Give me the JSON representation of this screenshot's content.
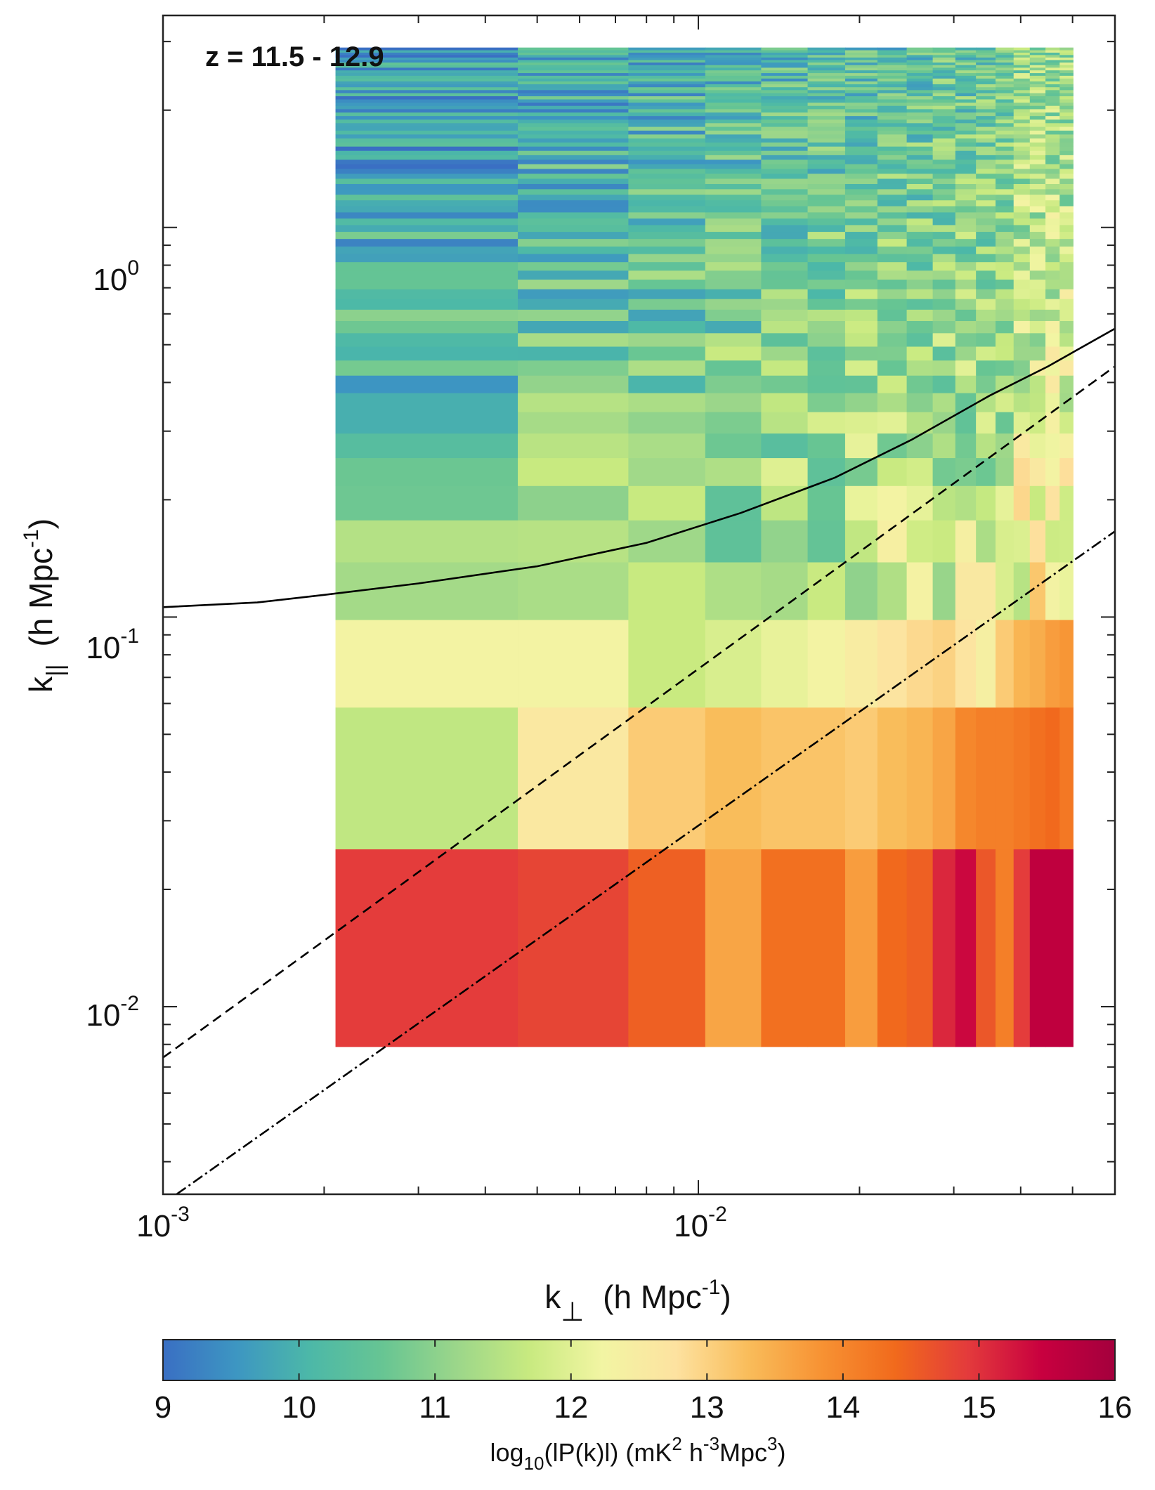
{
  "chart_data": {
    "type": "heatmap",
    "title": "",
    "annotation": "z = 11.5 - 12.9",
    "xlabel": {
      "main": "k",
      "sub": "⊥",
      "units_pre": "(h Mpc",
      "units_sup": "-1",
      "units_post": ")"
    },
    "ylabel": {
      "main": "k",
      "sub": "||",
      "units_pre": "(h Mpc",
      "units_sup": "-1",
      "units_post": ")"
    },
    "xscale": "log",
    "yscale": "log",
    "xlim": [
      0.001,
      0.06
    ],
    "ylim": [
      0.0033,
      3.5
    ],
    "x_ticks": [
      {
        "value": 0.001,
        "base": "10",
        "exp": "-3"
      },
      {
        "value": 0.01,
        "base": "10",
        "exp": "-2"
      }
    ],
    "y_ticks": [
      {
        "value": 0.01,
        "base": "10",
        "exp": "-2"
      },
      {
        "value": 0.1,
        "base": "10",
        "exp": "-1"
      },
      {
        "value": 1,
        "base": "10",
        "exp": "0"
      }
    ],
    "x_bin_edges": [
      0.0021,
      0.0046,
      0.0074,
      0.0103,
      0.0131,
      0.016,
      0.0188,
      0.0216,
      0.0245,
      0.0274,
      0.0302,
      0.033,
      0.0359,
      0.0388,
      0.0416,
      0.0445,
      0.0473,
      0.0501
    ],
    "y_bin_edges": [
      0.0079,
      0.0254,
      0.0587,
      0.0985,
      0.1385,
      0.1775,
      0.2175,
      0.2565,
      0.2965,
      0.3365,
      0.3765,
      0.4175,
      0.4565,
      0.4955,
      0.5365,
      0.5765,
      0.6165,
      0.6565,
      0.6955,
      0.7365,
      0.7765,
      0.8165,
      0.8565,
      0.8955,
      0.9365,
      0.9765,
      1.0165,
      1.0565,
      1.0955,
      1.1365,
      1.1765,
      1.2165,
      1.2565,
      1.2955,
      1.3365,
      1.3765,
      1.4165,
      1.4565,
      1.4955,
      1.5365,
      1.5765,
      1.6165,
      1.6565,
      1.6955,
      1.7365,
      1.7765,
      1.8165,
      1.8565,
      1.8955,
      1.9365,
      1.9765,
      2.0165,
      2.0565,
      2.0955,
      2.1365,
      2.1765,
      2.2165,
      2.2565,
      2.2955,
      2.3365,
      2.3765,
      2.4165,
      2.4565,
      2.4955,
      2.5365,
      2.5765,
      2.6165,
      2.6565,
      2.6955,
      2.7365,
      2.7765,
      2.8165,
      2.8565,
      2.8955
    ],
    "row_values_low": [
      [
        14.9,
        14.8,
        14.5,
        13.6,
        14.3,
        14.3,
        13.7,
        14.4,
        14.5,
        15.1,
        15.4,
        14.6,
        14.1,
        14.9,
        15.6,
        15.6,
        15.6
      ],
      [
        11.6,
        12.6,
        13.1,
        13.3,
        13.2,
        13.2,
        13.1,
        13.3,
        13.4,
        13.6,
        14.0,
        14.1,
        14.1,
        14.2,
        14.3,
        14.4,
        14.2
      ],
      [
        12.3,
        12.3,
        11.7,
        11.9,
        12.1,
        12.3,
        12.5,
        12.7,
        12.9,
        13.0,
        12.7,
        12.4,
        13.1,
        13.4,
        13.5,
        13.7,
        13.8
      ]
    ],
    "line_curves": [
      {
        "name": "horizon-limit",
        "style": "solid",
        "x": [
          0.001,
          0.0015,
          0.002,
          0.003,
          0.005,
          0.008,
          0.012,
          0.018,
          0.025,
          0.035,
          0.045,
          0.06
        ],
        "y": [
          0.106,
          0.109,
          0.114,
          0.122,
          0.135,
          0.155,
          0.185,
          0.228,
          0.285,
          0.37,
          0.44,
          0.55
        ]
      },
      {
        "name": "wedge-dashed",
        "style": "dashed",
        "x": [
          0.001,
          0.06
        ],
        "y": [
          0.0074,
          0.44
        ]
      },
      {
        "name": "wedge-dashdot",
        "style": "dashdot",
        "x": [
          0.00106,
          0.06
        ],
        "y": [
          0.0033,
          0.166
        ]
      }
    ],
    "colorbar": {
      "min": 9,
      "max": 16,
      "ticks": [
        "9",
        "10",
        "11",
        "12",
        "13",
        "14",
        "15",
        "16"
      ],
      "label": {
        "pre": "log",
        "sub": "10",
        "mid": "(lP(k)l)  (mK",
        "sup1": "2",
        "mid2": " h",
        "sup2": "-3",
        "mid3": "Mpc",
        "sup3": "3",
        "post": ")"
      },
      "colormap": [
        "#3a6fc3",
        "#3d96c2",
        "#4cb8a8",
        "#67c593",
        "#9bd68a",
        "#c8ea80",
        "#f2f5a3",
        "#fde2a0",
        "#f9bc5a",
        "#f79233",
        "#f16a1c",
        "#e33a3c",
        "#c8003f",
        "#a4003d"
      ]
    }
  }
}
